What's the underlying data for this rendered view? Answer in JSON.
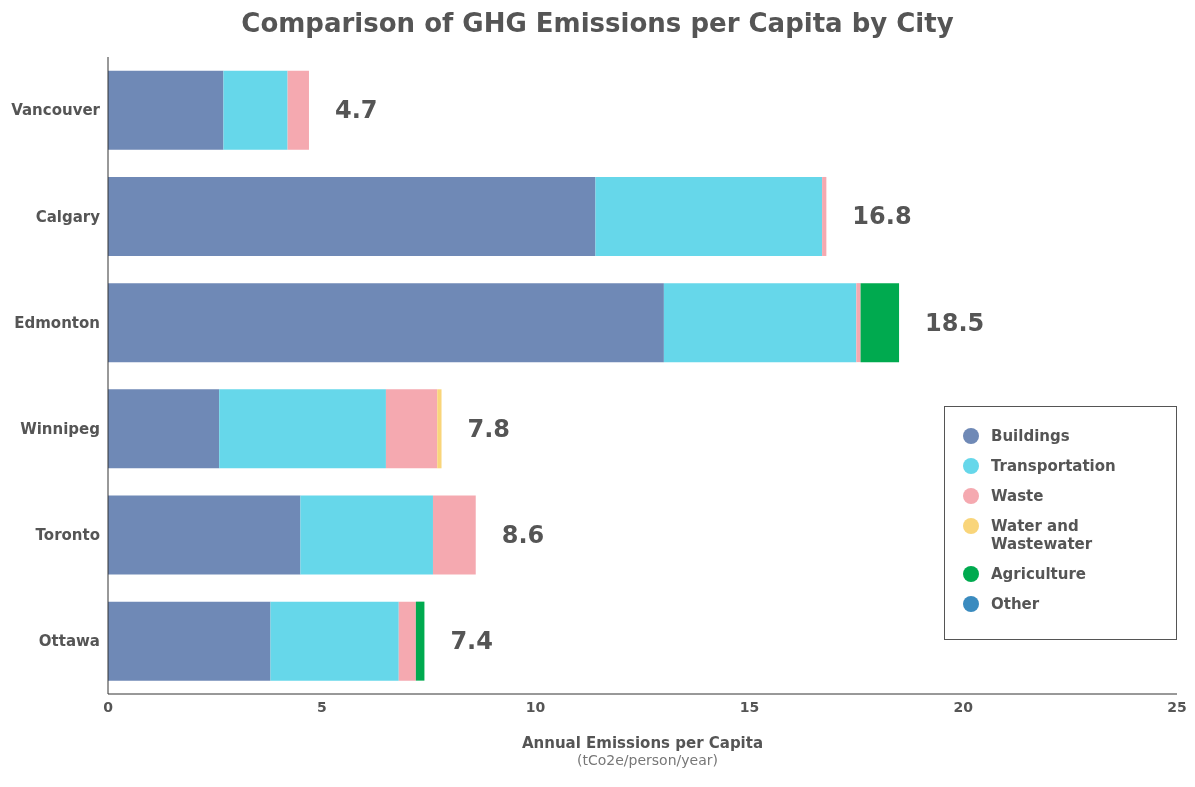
{
  "chart_data": {
    "type": "bar",
    "orientation": "horizontal",
    "stacked": true,
    "title": "Comparison of GHG Emissions per Capita by City",
    "xlabel": "Annual Emissions per Capita",
    "annotations": [
      "(tCo2e/person/year)"
    ],
    "categories": [
      "Vancouver",
      "Calgary",
      "Edmonton",
      "Winnipeg",
      "Toronto",
      "Ottawa"
    ],
    "series": [
      {
        "name": "Buildings",
        "color": "#6f89b6",
        "values": [
          2.7,
          11.4,
          13.0,
          2.6,
          4.5,
          3.8
        ]
      },
      {
        "name": "Transportation",
        "color": "#66d7ea",
        "values": [
          1.5,
          5.3,
          4.5,
          3.9,
          3.1,
          3.0
        ]
      },
      {
        "name": "Waste",
        "color": "#f5a9b0",
        "values": [
          0.5,
          0.1,
          0.1,
          1.2,
          1.0,
          0.4
        ]
      },
      {
        "name": "Water and Wastewater",
        "color": "#f9d57a",
        "values": [
          0,
          0,
          0,
          0.1,
          0,
          0
        ]
      },
      {
        "name": "Agriculture",
        "color": "#00aa4f",
        "values": [
          0,
          0,
          0.9,
          0,
          0,
          0.2
        ]
      },
      {
        "name": "Other",
        "color": "#3a8bbf",
        "values": [
          0,
          0,
          0,
          0,
          0,
          0
        ]
      }
    ],
    "totals": [
      "4.7",
      "16.8",
      "18.5",
      "7.8",
      "8.6",
      "7.4"
    ],
    "xlim": [
      0,
      25
    ],
    "xticks": [
      0,
      5,
      10,
      15,
      20,
      25
    ],
    "legend": "right"
  }
}
